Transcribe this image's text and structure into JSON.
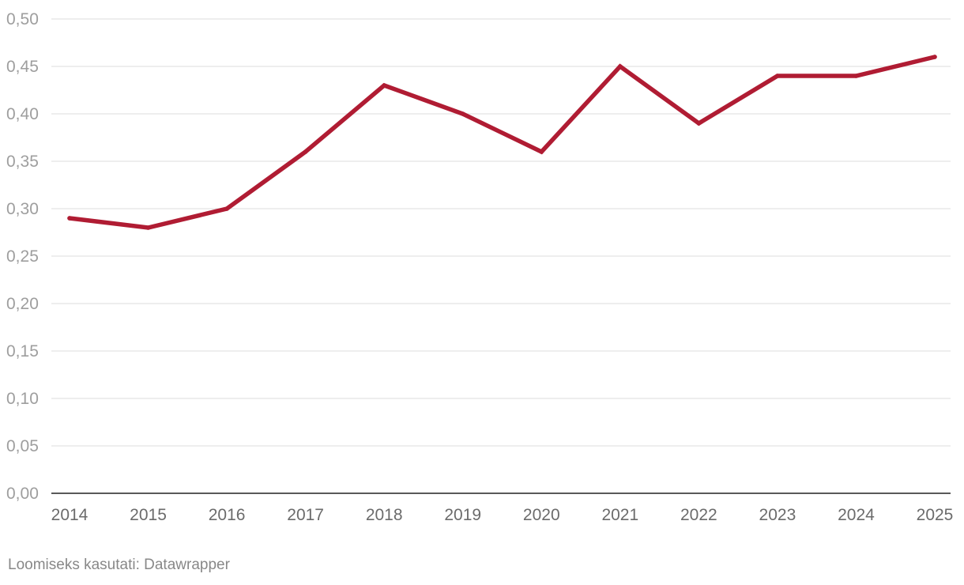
{
  "chart_data": {
    "type": "line",
    "title": "",
    "xlabel": "",
    "ylabel": "",
    "x": [
      "2014",
      "2015",
      "2016",
      "2017",
      "2018",
      "2019",
      "2020",
      "2021",
      "2022",
      "2023",
      "2024",
      "2025"
    ],
    "series": [
      {
        "name": "",
        "color": "#b01c33",
        "values": [
          0.29,
          0.28,
          0.3,
          0.36,
          0.43,
          0.4,
          0.36,
          0.45,
          0.39,
          0.44,
          0.44,
          0.46
        ]
      }
    ],
    "ylim": [
      0,
      0.5
    ],
    "yticks": [
      "0,00",
      "0,05",
      "0,10",
      "0,15",
      "0,20",
      "0,25",
      "0,30",
      "0,35",
      "0,40",
      "0,45",
      "0,50"
    ],
    "grid": true
  },
  "footer": {
    "credit": "Loomiseks kasutati: Datawrapper"
  }
}
